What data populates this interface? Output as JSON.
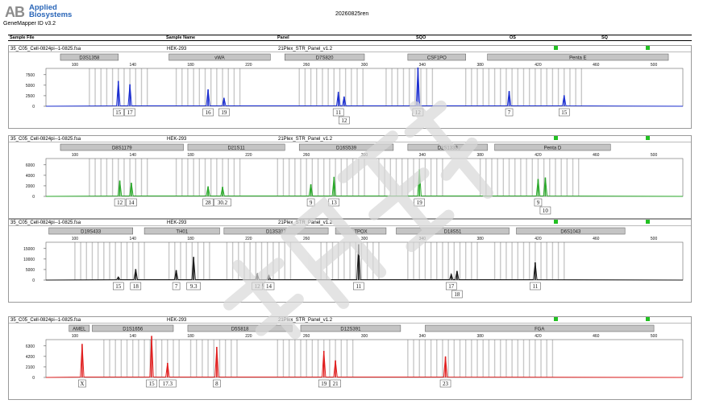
{
  "header": {
    "logo_mark": "AB",
    "logo_line1": "Applied",
    "logo_line2": "Biosystems",
    "software": "GeneMapper ID v3.2",
    "run_name": "20260825ren"
  },
  "columns": {
    "sample_file": "Sample File",
    "sample_name": "Sample Name",
    "panel": "Panel",
    "sqo": "SQO",
    "os": "OS",
    "sq": "SQ"
  },
  "colors": {
    "blue": "#1c2fd0",
    "green": "#2aa82a",
    "black": "#1a1a1a",
    "red": "#e02020",
    "qc": "#22c022",
    "bin": "#c8c8c8"
  },
  "panels": [
    {
      "sample_file": "35_C05_Cell-0824pi--1-0825.fsa",
      "sample_name": "HEK-293",
      "panel": "21Plex_STR_Panel_v1.2",
      "color": "#1c2fd0",
      "y_ticks": [
        "7500",
        "5000",
        "2500",
        "0"
      ],
      "x_ticks": [
        "100",
        "140",
        "180",
        "220",
        "260",
        "300",
        "340",
        "380",
        "420",
        "460",
        "500"
      ],
      "loci": [
        "D3S1358",
        "vWA",
        "D7S820",
        "CSF1PO",
        "Penta E"
      ],
      "alleles": [
        {
          "size": 130,
          "height": 6000,
          "label": "15"
        },
        {
          "size": 138,
          "height": 5200,
          "label": "17"
        },
        {
          "size": 192,
          "height": 4000,
          "label": "16"
        },
        {
          "size": 203,
          "height": 2000,
          "label": "19"
        },
        {
          "size": 282,
          "height": 3400,
          "label": "11"
        },
        {
          "size": 286,
          "height": 2300,
          "label": "12"
        },
        {
          "size": 337,
          "height": 9200,
          "label": "12"
        },
        {
          "size": 400,
          "height": 3600,
          "label": "7"
        },
        {
          "size": 438,
          "height": 2600,
          "label": "15"
        }
      ]
    },
    {
      "sample_file": "35_C05_Cell-0824pi--1-0825.fsa",
      "sample_name": "HEK-293",
      "panel": "21Plex_STR_Panel_v1.2",
      "color": "#2aa82a",
      "y_ticks": [
        "6000",
        "4000",
        "2000",
        "0"
      ],
      "x_ticks": [
        "100",
        "140",
        "180",
        "220",
        "260",
        "300",
        "340",
        "380",
        "420",
        "460",
        "500"
      ],
      "loci": [
        "D8S1179",
        "D21S11",
        "D16S539",
        "D2S1338",
        "Penta D"
      ],
      "alleles": [
        {
          "size": 131,
          "height": 3000,
          "label": "12"
        },
        {
          "size": 139,
          "height": 2600,
          "label": "14"
        },
        {
          "size": 192,
          "height": 1900,
          "label": "28"
        },
        {
          "size": 202,
          "height": 1800,
          "label": "30.2"
        },
        {
          "size": 263,
          "height": 2300,
          "label": "9"
        },
        {
          "size": 279,
          "height": 3700,
          "label": "13"
        },
        {
          "size": 338,
          "height": 5100,
          "label": "19"
        },
        {
          "size": 420,
          "height": 3300,
          "label": "9"
        },
        {
          "size": 425,
          "height": 3600,
          "label": "10"
        }
      ]
    },
    {
      "sample_file": "35_C05_Cell-0824pi--1-0825.fsa",
      "sample_name": "HEK-293",
      "panel": "21Plex_STR_Panel_v1.2",
      "color": "#1a1a1a",
      "y_ticks": [
        "15000",
        "10000",
        "5000",
        "0"
      ],
      "x_ticks": [
        "100",
        "140",
        "180",
        "220",
        "260",
        "300",
        "340",
        "380",
        "420",
        "460",
        "500"
      ],
      "loci": [
        "D19S433",
        "TH01",
        "D13S317",
        "TPOX",
        "D18S51",
        "D6S1043"
      ],
      "alleles": [
        {
          "size": 130,
          "height": 1500,
          "label": "15"
        },
        {
          "size": 142,
          "height": 5200,
          "label": "18"
        },
        {
          "size": 170,
          "height": 4700,
          "label": "7"
        },
        {
          "size": 182,
          "height": 11000,
          "label": "9.3"
        },
        {
          "size": 226,
          "height": 2900,
          "label": "12"
        },
        {
          "size": 234,
          "height": 2300,
          "label": "14"
        },
        {
          "size": 296,
          "height": 17000,
          "label": "11"
        },
        {
          "size": 360,
          "height": 2800,
          "label": "17"
        },
        {
          "size": 364,
          "height": 4300,
          "label": "18"
        },
        {
          "size": 418,
          "height": 8400,
          "label": "11"
        }
      ]
    },
    {
      "sample_file": "35_C05_Cell-0824pi--1-0825.fsa",
      "sample_name": "HEK-293",
      "panel": "21Plex_STR_Panel_v1.2",
      "color": "#e02020",
      "y_ticks": [
        "6300",
        "4200",
        "2100",
        "0"
      ],
      "x_ticks": [
        "100",
        "140",
        "180",
        "220",
        "260",
        "300",
        "340",
        "380",
        "420",
        "460",
        "500"
      ],
      "loci": [
        "AMEL",
        "D1S1656",
        "D5S818",
        "D12S391",
        "FGA"
      ],
      "alleles": [
        {
          "size": 105,
          "height": 6700,
          "label": "X"
        },
        {
          "size": 153,
          "height": 8300,
          "label": "15"
        },
        {
          "size": 164,
          "height": 2900,
          "label": "17.3"
        },
        {
          "size": 198,
          "height": 6100,
          "label": "8"
        },
        {
          "size": 272,
          "height": 5300,
          "label": "19"
        },
        {
          "size": 280,
          "height": 3400,
          "label": "21"
        },
        {
          "size": 356,
          "height": 4200,
          "label": "23"
        }
      ]
    }
  ]
}
